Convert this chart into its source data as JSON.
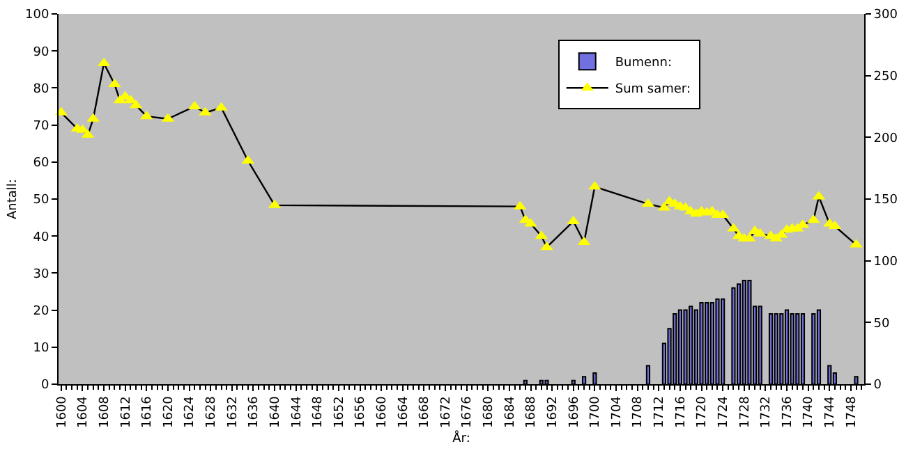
{
  "chart_data": {
    "type": "bar",
    "xlabel": "År:",
    "ylabel": "Antall:",
    "xlim": [
      1599.5,
      1750.5
    ],
    "xticks": [
      1600,
      1604,
      1608,
      1612,
      1616,
      1620,
      1624,
      1628,
      1632,
      1636,
      1640,
      1644,
      1648,
      1652,
      1656,
      1660,
      1664,
      1668,
      1672,
      1676,
      1680,
      1684,
      1688,
      1692,
      1696,
      1700,
      1704,
      1708,
      1712,
      1716,
      1720,
      1724,
      1728,
      1732,
      1736,
      1740,
      1744,
      1748
    ],
    "ylim": [
      0,
      100
    ],
    "yticks": [
      0,
      10,
      20,
      30,
      40,
      50,
      60,
      70,
      80,
      90,
      100
    ],
    "y2lim": [
      0,
      300
    ],
    "y2ticks": [
      0,
      50,
      100,
      150,
      200,
      250,
      300
    ],
    "legend": "top",
    "marker": "triangle",
    "series": [
      {
        "name": "Bumenn:",
        "color": "#7070e0",
        "x": [
          1687,
          1690,
          1691,
          1696,
          1698,
          1700,
          1710,
          1713,
          1714,
          1715,
          1716,
          1717,
          1718,
          1719,
          1720,
          1721,
          1722,
          1723,
          1724,
          1726,
          1727,
          1728,
          1729,
          1730,
          1731,
          1733,
          1734,
          1735,
          1736,
          1737,
          1738,
          1739,
          1741,
          1742,
          1744,
          1745,
          1749
        ],
        "values": [
          1,
          1,
          1,
          1,
          2,
          3,
          5,
          11,
          15,
          19,
          20,
          20,
          21,
          20,
          22,
          22,
          22,
          23,
          23,
          26,
          27,
          28,
          28,
          21,
          21,
          19,
          19,
          19,
          20,
          19,
          19,
          19,
          19,
          20,
          5,
          3,
          2
        ]
      },
      {
        "type": "line",
        "name": "Sum samer:",
        "color": "#000000",
        "axis": "y2",
        "x": [
          1600,
          1603,
          1604,
          1605,
          1606,
          1608,
          1610,
          1611,
          1612,
          1613,
          1614,
          1616,
          1620,
          1625,
          1627,
          1630,
          1635,
          1640,
          1686,
          1687,
          1688,
          1690,
          1691,
          1696,
          1698,
          1700,
          1710,
          1713,
          1714,
          1715,
          1716,
          1717,
          1718,
          1719,
          1720,
          1721,
          1722,
          1723,
          1724,
          1726,
          1727,
          1728,
          1729,
          1730,
          1731,
          1733,
          1734,
          1735,
          1736,
          1737,
          1738,
          1739,
          1741,
          1742,
          1744,
          1745,
          1749
        ],
        "values": [
          220,
          207,
          206,
          202,
          215,
          260,
          243,
          230,
          233,
          230,
          226,
          217,
          215,
          225,
          220,
          224,
          181,
          145,
          144,
          133,
          130,
          120,
          111,
          132,
          115,
          160,
          146,
          143,
          148,
          146,
          144,
          143,
          140,
          138,
          140,
          139,
          140,
          137,
          137,
          126,
          120,
          118,
          118,
          124,
          122,
          120,
          118,
          121,
          125,
          126,
          126,
          129,
          133,
          152,
          130,
          128,
          113
        ]
      }
    ]
  }
}
